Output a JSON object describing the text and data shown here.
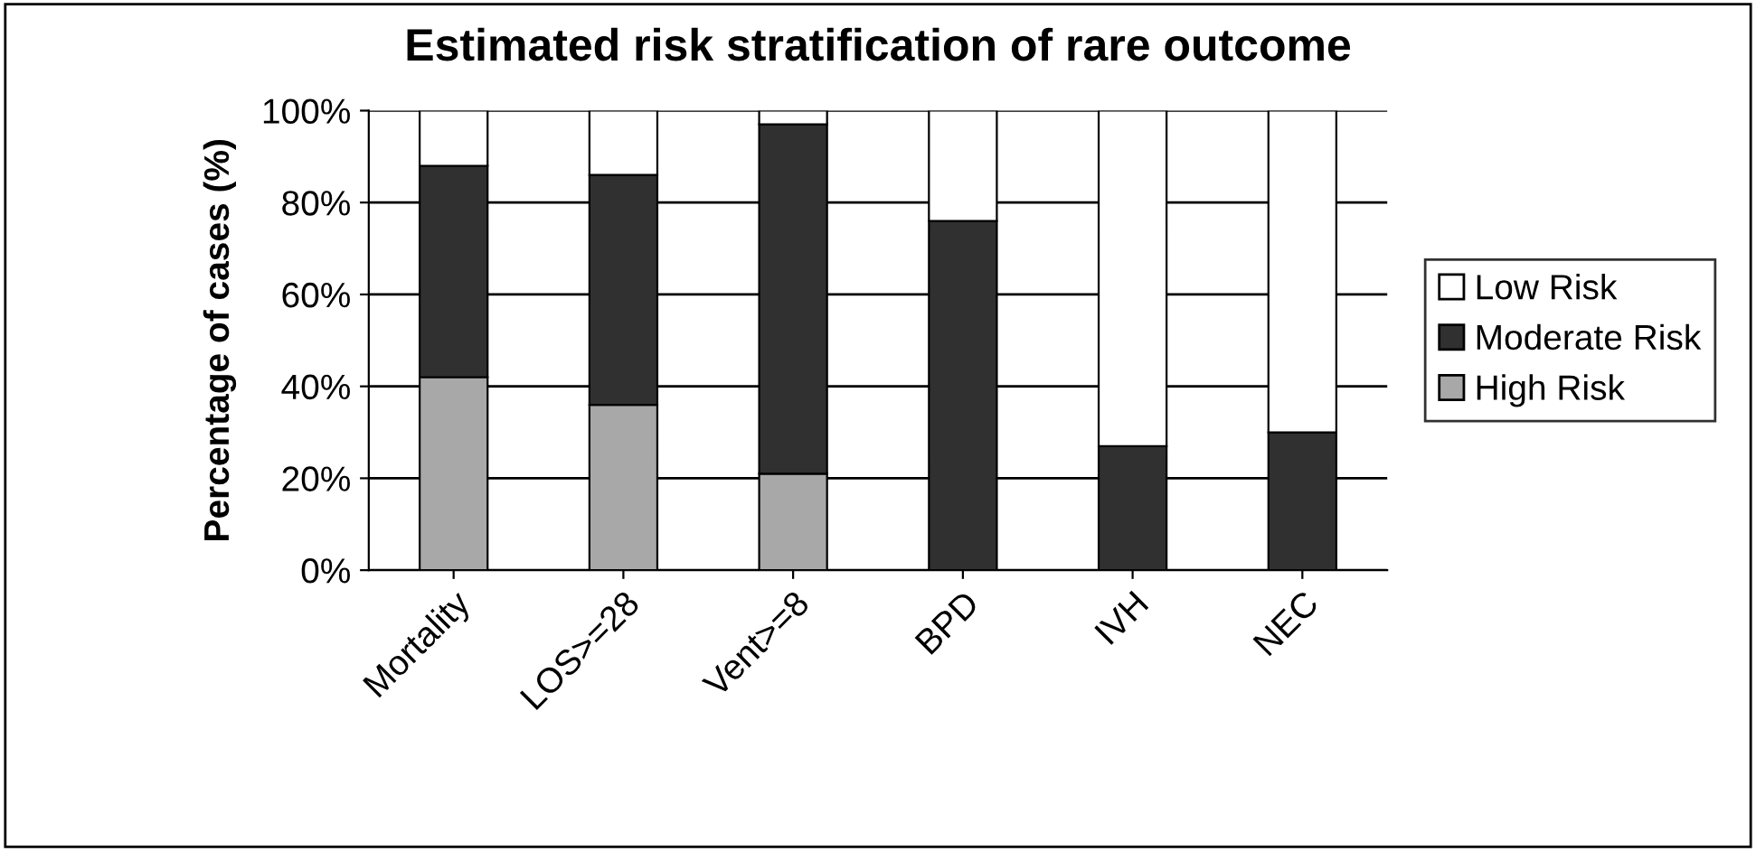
{
  "chart_data": {
    "type": "bar",
    "stacked": true,
    "title": "Estimated risk stratification of rare outcome",
    "ylabel": "Percentage of cases (%)",
    "categories": [
      "Mortality",
      "LOS>=28",
      "Vent>=8",
      "BPD",
      "IVH",
      "NEC"
    ],
    "series": [
      {
        "name": "High Risk",
        "color": "#a8a8a8",
        "values": [
          42,
          36,
          21,
          0,
          0,
          0
        ]
      },
      {
        "name": "Moderate Risk",
        "color": "#303030",
        "values": [
          46,
          50,
          76,
          76,
          27,
          30
        ]
      },
      {
        "name": "Low Risk",
        "color": "#ffffff",
        "values": [
          12,
          14,
          3,
          24,
          73,
          70
        ]
      }
    ],
    "ylim": [
      0,
      100
    ],
    "yticks": [
      {
        "value": 0,
        "label": "0%"
      },
      {
        "value": 20,
        "label": "20%"
      },
      {
        "value": 40,
        "label": "40%"
      },
      {
        "value": 60,
        "label": "60%"
      },
      {
        "value": 80,
        "label": "80%"
      },
      {
        "value": 100,
        "label": "100%"
      }
    ],
    "grid": "y",
    "legend": "right"
  }
}
